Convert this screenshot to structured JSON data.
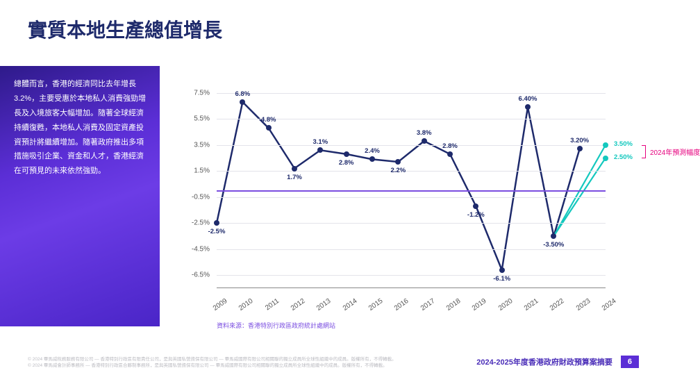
{
  "title": {
    "text": "實質本地生產總值增長",
    "color": "#1e2a6b",
    "fontsize": 28
  },
  "sidebar": {
    "text": "總體而言，香港的經濟同比去年增長3.2%，主要受惠於本地私人消費強勁增長及入境旅客大幅增加。隨著全球經濟持續復甦，本地私人消費及固定資產投資預計將繼續增加。隨著政府推出多項措施吸引企業、資金和人才，香港經濟在可預見的未來依然強勁。",
    "color": "#ffffff",
    "fontsize": 11,
    "line_height": 1.9
  },
  "chart": {
    "type": "line",
    "years": [
      "2009",
      "2010",
      "2011",
      "2012",
      "2013",
      "2014",
      "2015",
      "2016",
      "2017",
      "2018",
      "2019",
      "2020",
      "2021",
      "2022",
      "2023",
      "2024"
    ],
    "values": [
      -2.5,
      6.8,
      4.8,
      1.7,
      3.1,
      2.8,
      2.4,
      2.2,
      3.8,
      2.8,
      -1.2,
      -6.1,
      6.4,
      -3.5,
      3.2,
      null
    ],
    "point_labels": [
      "-2.5%",
      "6.8%",
      "4.8%",
      "1.7%",
      "3.1%",
      "2.8%",
      "2.4%",
      "2.2%",
      "3.8%",
      "2.8%",
      "-1.2%",
      "-6.1%",
      "6.40%",
      "-3.50%",
      "3.20%",
      ""
    ],
    "label_pos": [
      "below",
      "above",
      "above",
      "below",
      "above",
      "below",
      "above",
      "below",
      "above",
      "above",
      "below",
      "below",
      "above",
      "below",
      "above",
      ""
    ],
    "forecast": {
      "from_index": 13,
      "points": [
        3.5,
        2.5
      ],
      "labels": [
        "3.50%",
        "2.50%"
      ],
      "color": "#14c8be",
      "annot": "2024年預測幅度",
      "annot_color": "#e6007e"
    },
    "line_color": "#1e2a6b",
    "line_width": 2.5,
    "marker_color": "#1e2a6b",
    "marker_size": 8,
    "label_color": "#1e2a6b",
    "label_fontsize": 9.5,
    "y": {
      "min": -7.5,
      "max": 8.5,
      "tick_step": 2,
      "ticks": [
        -6.5,
        -4.5,
        -2.5,
        -0.5,
        1.5,
        3.5,
        5.5,
        7.5
      ],
      "tick_fontsize": 10,
      "tick_color": "#555"
    },
    "x": {
      "tick_fontsize": 10,
      "tick_color": "#555",
      "rotate": -35
    },
    "grid_color": "#e3e3ea",
    "zero_line_color": "#7a4de0",
    "source": {
      "text": "資料來源：香港特別行政區政府統計處網站",
      "color": "#7a4de0",
      "fontsize": 9
    }
  },
  "footer": {
    "left_line1": "© 2024 畢馬威稅務服務有限公司 — 香港特別行政區有限責任公司，是與英國私營擔保有限公司 — 畢馬威國際有限公司相關聯的獨立成員所全球性組織中的成員。版權所有，不得轉載。",
    "left_line2": "© 2024 畢馬威會計師事務所 — 香港特別行政區合夥制事務所，是與英國私營擔保有限公司 — 畢馬威國際有限公司相關聯的獨立成員所全球性組織中的成員。版權所有，不得轉載。",
    "right": "2024-2025年度香港政府財政預算案摘要",
    "right_color": "#4a2db8",
    "page": "6"
  }
}
